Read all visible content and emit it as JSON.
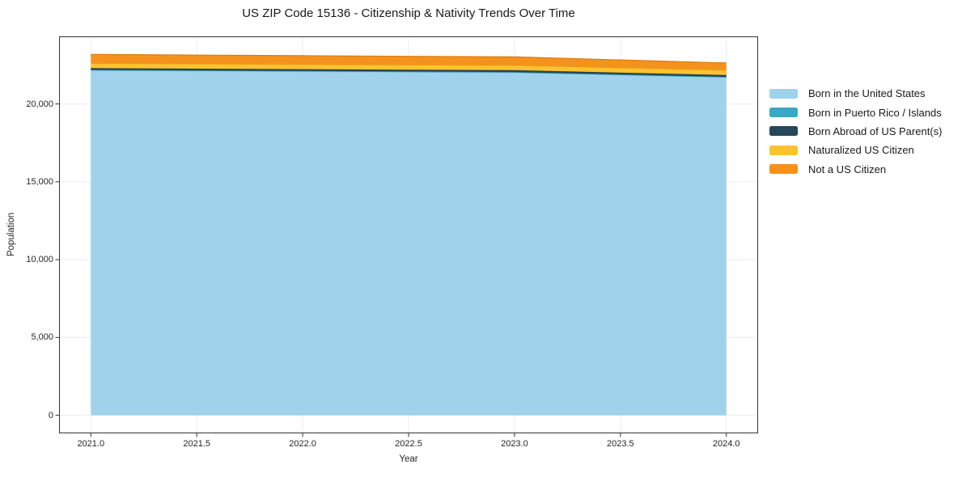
{
  "chart_data": {
    "type": "area",
    "stacked": true,
    "title": "US ZIP Code 15136 - Citizenship & Nativity Trends Over Time",
    "xlabel": "Year",
    "ylabel": "Population",
    "x": [
      2021,
      2022,
      2023,
      2024
    ],
    "series": [
      {
        "name": "Born in the United States",
        "color": "#a0d3eb",
        "edge_color": "#8cc3de",
        "values": [
          22150,
          22080,
          22010,
          21700
        ]
      },
      {
        "name": "Born in Puerto Rico / Islands",
        "color": "#3ba7c3",
        "edge_color": "#2f93ad",
        "values": [
          40,
          40,
          40,
          40
        ]
      },
      {
        "name": "Born Abroad of US Parent(s)",
        "color": "#25475a",
        "edge_color": "#1d3948",
        "values": [
          110,
          110,
          120,
          120
        ]
      },
      {
        "name": "Naturalized US Citizen",
        "color": "#fcc22f",
        "edge_color": "#e2a714",
        "values": [
          310,
          310,
          310,
          310
        ]
      },
      {
        "name": "Not a US Citizen",
        "color": "#f5921e",
        "edge_color": "#d97c0c",
        "values": [
          570,
          560,
          540,
          460
        ]
      }
    ],
    "xlim": [
      2020.85,
      2024.15
    ],
    "ylim": [
      -1160,
      24340
    ],
    "xticks": [
      2021.0,
      2021.5,
      2022.0,
      2022.5,
      2023.0,
      2023.5,
      2024.0
    ],
    "xtick_labels": [
      "2021.0",
      "2021.5",
      "2022.0",
      "2022.5",
      "2023.0",
      "2023.5",
      "2024.0"
    ],
    "yticks": [
      0,
      5000,
      10000,
      15000,
      20000
    ],
    "ytick_labels": [
      "0",
      "5,000",
      "10,000",
      "15,000",
      "20,000"
    ],
    "grid": true,
    "legend_position": "right-outside",
    "background_color": "#ffffff",
    "grid_color": "#ececec",
    "spine_color": "#333333",
    "tick_color": "#333333"
  }
}
